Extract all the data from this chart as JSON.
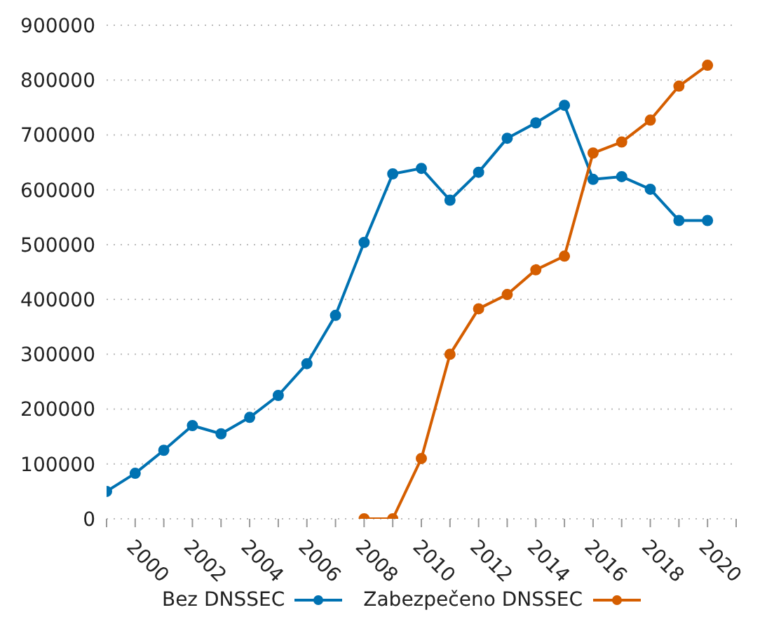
{
  "chart_data": {
    "type": "line",
    "x": [
      1999,
      2000,
      2001,
      2002,
      2003,
      2004,
      2005,
      2006,
      2007,
      2008,
      2009,
      2010,
      2011,
      2012,
      2013,
      2014,
      2015,
      2016,
      2017,
      2018,
      2019,
      2020
    ],
    "series": [
      {
        "name": "Bez DNSSEC",
        "color": "#0072b2",
        "values": [
          50000,
          83000,
          125000,
          170000,
          155000,
          185000,
          225000,
          283000,
          371000,
          504000,
          629000,
          639000,
          581000,
          632000,
          694000,
          722000,
          754000,
          619000,
          624000,
          601000,
          544000,
          544000
        ]
      },
      {
        "name": "Zabezpečeno DNSSEC",
        "color": "#d55e00",
        "values": [
          null,
          null,
          null,
          null,
          null,
          null,
          null,
          null,
          null,
          0,
          0,
          110000,
          300000,
          383000,
          409000,
          454000,
          479000,
          667000,
          687000,
          727000,
          789000,
          827000
        ]
      }
    ],
    "xlim": [
      1999,
      2021
    ],
    "xticks": [
      {
        "value": 1999,
        "label": null
      },
      2000,
      {
        "value": 2001,
        "label": null
      },
      2002,
      {
        "value": 2003,
        "label": null
      },
      2004,
      {
        "value": 2005,
        "label": null
      },
      2006,
      {
        "value": 2007,
        "label": null
      },
      2008,
      {
        "value": 2009,
        "label": null
      },
      2010,
      {
        "value": 2011,
        "label": null
      },
      2012,
      {
        "value": 2013,
        "label": null
      },
      2014,
      {
        "value": 2015,
        "label": null
      },
      2016,
      {
        "value": 2017,
        "label": null
      },
      2018,
      {
        "value": 2019,
        "label": null
      },
      2020,
      {
        "value": 2021,
        "label": null
      }
    ],
    "ylim": [
      0,
      900000
    ],
    "yticks": [
      0,
      100000,
      200000,
      300000,
      400000,
      500000,
      600000,
      700000,
      800000,
      900000
    ],
    "grid": "y",
    "legend": "bottom",
    "marker": "circle",
    "line_style": "solid"
  }
}
